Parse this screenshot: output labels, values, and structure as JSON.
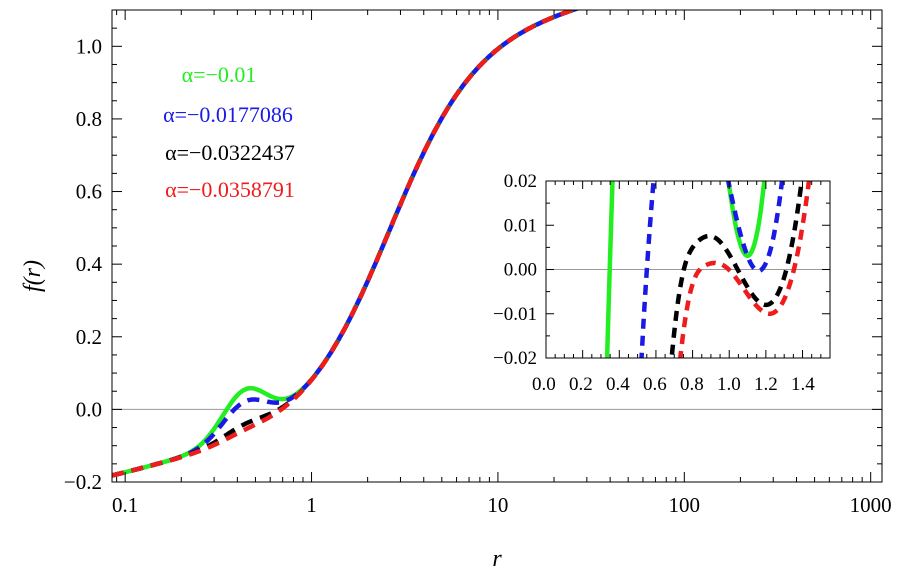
{
  "chart_data": {
    "type": "line",
    "xlabel": "r",
    "ylabel": "f(r)",
    "xscale": "log",
    "xlim": [
      0.085,
      1150
    ],
    "ylim": [
      -0.2,
      1.1
    ],
    "xticks": [
      {
        "v": 0.1,
        "label": "0.1"
      },
      {
        "v": 1,
        "label": "1"
      },
      {
        "v": 10,
        "label": "10"
      },
      {
        "v": 100,
        "label": "100"
      },
      {
        "v": 1000,
        "label": "1000"
      }
    ],
    "yticks": [
      {
        "v": -0.2,
        "label": "−0.2"
      },
      {
        "v": 0.0,
        "label": "0.0"
      },
      {
        "v": 0.2,
        "label": "0.2"
      },
      {
        "v": 0.4,
        "label": "0.4"
      },
      {
        "v": 0.6,
        "label": "0.6"
      },
      {
        "v": 0.8,
        "label": "0.8"
      },
      {
        "v": 1.0,
        "label": "1.0"
      }
    ],
    "legend_position": "top-left",
    "series": [
      {
        "name": "α=−0.01",
        "color": "#22ee22",
        "dash": "solid",
        "alpha": -0.01
      },
      {
        "name": "α=−0.0177086",
        "color": "#1a1ae6",
        "dash": "dashed",
        "alpha": -0.0177086
      },
      {
        "name": "α=−0.0322437",
        "color": "#000000",
        "dash": "dashed",
        "alpha": -0.0322437
      },
      {
        "name": "α=−0.0358791",
        "color": "#ee1c1c",
        "dash": "dashed",
        "alpha": -0.0358791
      }
    ],
    "inset": {
      "xscale": "linear",
      "xlim": [
        0.0,
        1.55
      ],
      "ylim": [
        -0.02,
        0.02
      ],
      "xtick_labels": [
        "0.0",
        "0.2",
        "0.4",
        "0.6",
        "0.8",
        "1.0",
        "1.2",
        "1.4"
      ],
      "yticks": [
        {
          "v": 0.02,
          "label": "0.02"
        },
        {
          "v": 0.01,
          "label": "0.01"
        },
        {
          "v": 0.0,
          "label": "0.00"
        },
        {
          "v": -0.01,
          "label": "−0.01"
        },
        {
          "v": -0.02,
          "label": "−0.02"
        }
      ]
    }
  }
}
